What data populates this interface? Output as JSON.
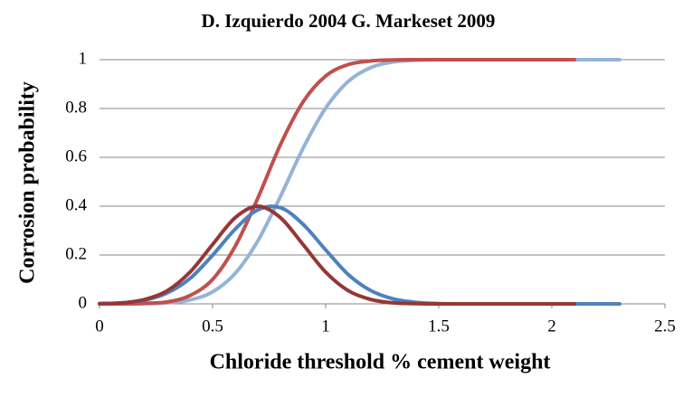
{
  "chart_data": {
    "type": "line",
    "title": "D. Izquierdo 2004 G. Markeset 2009",
    "xlabel": "Chloride threshold % cement weight",
    "ylabel": "Corrosion probability",
    "x": [
      0,
      0.1,
      0.2,
      0.3,
      0.4,
      0.5,
      0.6,
      0.7,
      0.8,
      0.9,
      1,
      1.1,
      1.2,
      1.3,
      1.4,
      1.5,
      1.6,
      1.7,
      1.8,
      1.9,
      2,
      2.1,
      2.2,
      2.3
    ],
    "series": [
      {
        "color": "#95b3d7",
        "values": [
          0,
          0.0001,
          0.001,
          0.004,
          0.016,
          0.049,
          0.125,
          0.258,
          0.44,
          0.637,
          0.802,
          0.911,
          0.968,
          0.991,
          0.998,
          1,
          1,
          1,
          1,
          1,
          1,
          1,
          1,
          1
        ]
      },
      {
        "color": "#c0504d",
        "values": [
          0,
          0.0002,
          0.002,
          0.008,
          0.034,
          0.1,
          0.236,
          0.433,
          0.652,
          0.827,
          0.933,
          0.98,
          0.995,
          0.999,
          1,
          1,
          1,
          1,
          1,
          1,
          1,
          1,
          null,
          null
        ]
      },
      {
        "color": "#4f81bd",
        "values": [
          0.001,
          0.004,
          0.015,
          0.045,
          0.104,
          0.199,
          0.306,
          0.385,
          0.394,
          0.326,
          0.221,
          0.12,
          0.054,
          0.02,
          0.006,
          0.001,
          0,
          0,
          0,
          0,
          0,
          0,
          0,
          0
        ]
      },
      {
        "color": "#953735",
        "values": [
          0.001,
          0.004,
          0.018,
          0.054,
          0.13,
          0.243,
          0.353,
          0.4,
          0.353,
          0.243,
          0.13,
          0.054,
          0.018,
          0.004,
          0.001,
          0,
          0,
          0,
          0,
          0,
          0,
          0,
          null,
          null
        ]
      }
    ],
    "xlim": [
      0,
      2.5
    ],
    "xticks": [
      0,
      0.5,
      1,
      1.5,
      2,
      2.5
    ],
    "ylim": [
      0,
      1
    ],
    "yticks": [
      0,
      0.2,
      0.4,
      0.6,
      0.8,
      1
    ],
    "grid": true
  }
}
